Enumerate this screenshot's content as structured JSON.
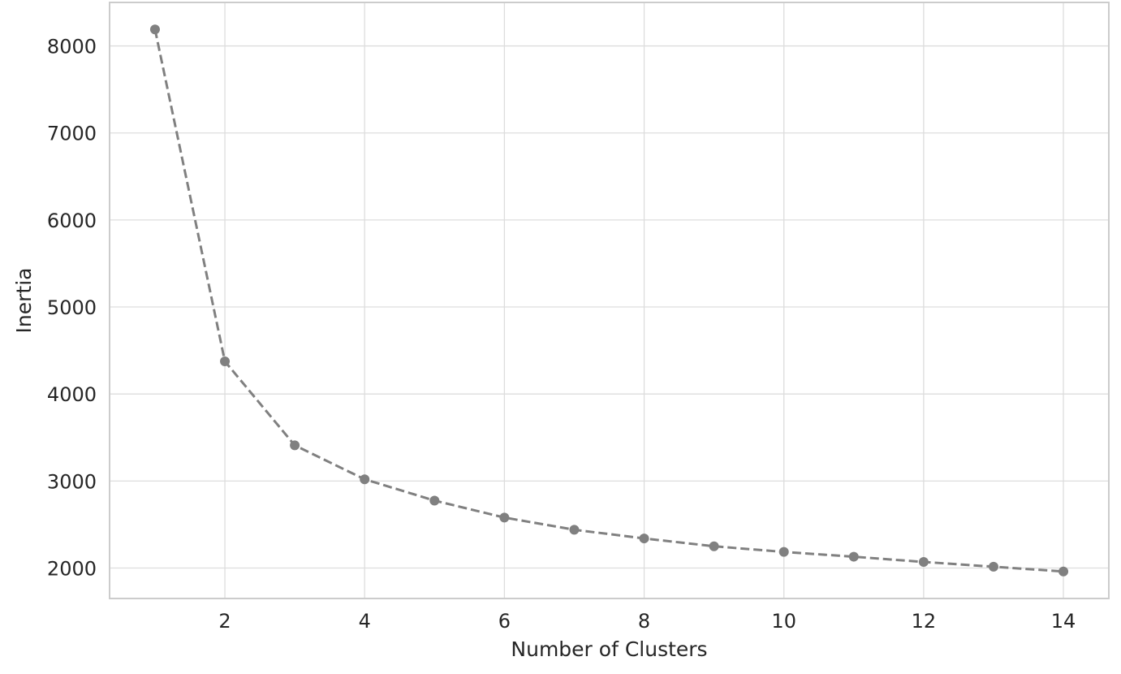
{
  "chart_data": {
    "type": "line",
    "title": "",
    "xlabel": "Number of Clusters",
    "ylabel": "Inertia",
    "x": [
      1,
      2,
      3,
      4,
      5,
      6,
      7,
      8,
      9,
      10,
      11,
      12,
      13,
      14
    ],
    "series": [
      {
        "values": [
          8190,
          4375,
          3410,
          3020,
          2775,
          2580,
          2440,
          2340,
          2250,
          2185,
          2130,
          2070,
          2015,
          1960
        ]
      }
    ],
    "xlim": [
      0.35,
      14.65
    ],
    "ylim": [
      1650,
      8500
    ],
    "xticks": [
      2,
      4,
      6,
      8,
      10,
      12,
      14
    ],
    "yticks": [
      2000,
      3000,
      4000,
      5000,
      6000,
      7000,
      8000
    ],
    "grid": true,
    "line_style": "dashed",
    "marker": "circle",
    "colors": {
      "series": "#808080",
      "grid": "#dddddd",
      "frame": "#cccccc",
      "text": "#262626"
    }
  }
}
